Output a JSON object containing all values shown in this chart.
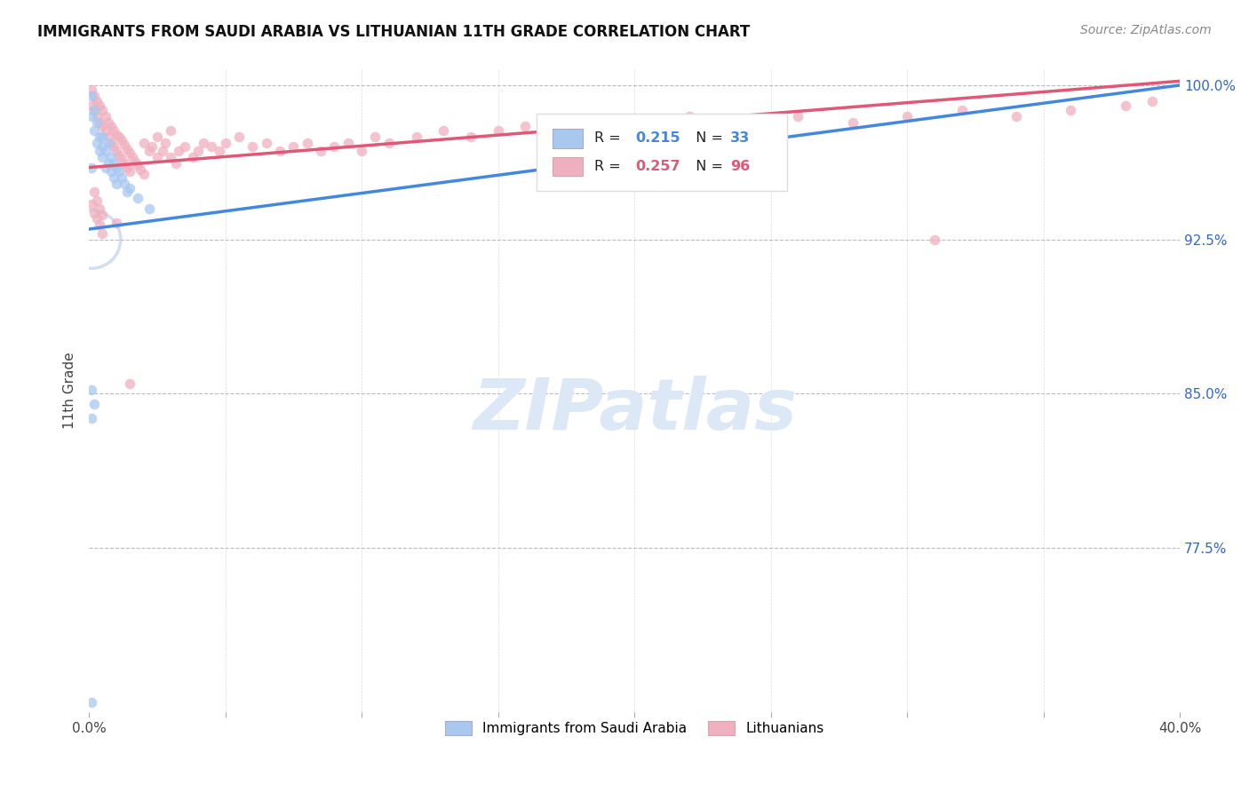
{
  "title": "IMMIGRANTS FROM SAUDI ARABIA VS LITHUANIAN 11TH GRADE CORRELATION CHART",
  "source": "Source: ZipAtlas.com",
  "ylabel": "11th Grade",
  "x_min": 0.0,
  "x_max": 0.4,
  "y_min": 0.695,
  "y_max": 1.008,
  "y_ticks": [
    0.775,
    0.85,
    0.925,
    1.0
  ],
  "y_tick_labels": [
    "77.5%",
    "85.0%",
    "92.5%",
    "100.0%"
  ],
  "blue_R": 0.215,
  "blue_N": 33,
  "pink_R": 0.257,
  "pink_N": 96,
  "blue_color": "#a8c8f0",
  "pink_color": "#f0b0c0",
  "blue_line_color": "#4488dd",
  "pink_line_color": "#e05878",
  "legend_blue_label": "Immigrants from Saudi Arabia",
  "legend_pink_label": "Lithuanians",
  "blue_trendline_x": [
    0.0,
    0.4
  ],
  "blue_trendline_y": [
    0.93,
    1.0
  ],
  "pink_trendline_x": [
    0.0,
    0.4
  ],
  "pink_trendline_y": [
    0.96,
    1.002
  ],
  "marker_size": 70,
  "watermark_text": "ZIPatlas",
  "background_color": "#ffffff",
  "grid_color": "#bbbbbb",
  "blue_scatter_x": [
    0.001,
    0.001,
    0.002,
    0.002,
    0.003,
    0.003,
    0.004,
    0.004,
    0.005,
    0.005,
    0.005,
    0.006,
    0.006,
    0.007,
    0.007,
    0.008,
    0.008,
    0.009,
    0.009,
    0.01,
    0.01,
    0.011,
    0.012,
    0.013,
    0.014,
    0.015,
    0.018,
    0.022,
    0.001,
    0.001,
    0.002,
    0.001,
    0.001
  ],
  "blue_scatter_y": [
    0.995,
    0.985,
    0.988,
    0.978,
    0.982,
    0.972,
    0.975,
    0.968,
    0.97,
    0.965,
    0.975,
    0.968,
    0.96,
    0.972,
    0.962,
    0.965,
    0.958,
    0.962,
    0.955,
    0.96,
    0.952,
    0.958,
    0.955,
    0.952,
    0.948,
    0.95,
    0.945,
    0.94,
    0.852,
    0.838,
    0.845,
    0.7,
    0.96
  ],
  "pink_scatter_x": [
    0.001,
    0.001,
    0.002,
    0.002,
    0.003,
    0.003,
    0.004,
    0.004,
    0.005,
    0.005,
    0.006,
    0.006,
    0.007,
    0.007,
    0.008,
    0.008,
    0.009,
    0.009,
    0.01,
    0.01,
    0.011,
    0.011,
    0.012,
    0.012,
    0.013,
    0.013,
    0.014,
    0.014,
    0.015,
    0.015,
    0.016,
    0.017,
    0.018,
    0.019,
    0.02,
    0.02,
    0.022,
    0.023,
    0.025,
    0.025,
    0.027,
    0.028,
    0.03,
    0.03,
    0.032,
    0.033,
    0.035,
    0.038,
    0.04,
    0.042,
    0.045,
    0.048,
    0.05,
    0.055,
    0.06,
    0.065,
    0.07,
    0.075,
    0.08,
    0.085,
    0.09,
    0.095,
    0.1,
    0.105,
    0.11,
    0.12,
    0.13,
    0.14,
    0.15,
    0.16,
    0.17,
    0.18,
    0.19,
    0.2,
    0.22,
    0.24,
    0.26,
    0.28,
    0.3,
    0.32,
    0.34,
    0.36,
    0.38,
    0.39,
    0.001,
    0.002,
    0.003,
    0.004,
    0.005,
    0.002,
    0.003,
    0.004,
    0.005,
    0.01,
    0.31,
    0.015
  ],
  "pink_scatter_y": [
    0.998,
    0.99,
    0.995,
    0.988,
    0.992,
    0.985,
    0.99,
    0.982,
    0.988,
    0.98,
    0.985,
    0.978,
    0.982,
    0.975,
    0.98,
    0.972,
    0.978,
    0.97,
    0.976,
    0.968,
    0.975,
    0.966,
    0.973,
    0.964,
    0.971,
    0.962,
    0.969,
    0.96,
    0.967,
    0.958,
    0.965,
    0.963,
    0.961,
    0.959,
    0.957,
    0.972,
    0.968,
    0.97,
    0.965,
    0.975,
    0.968,
    0.972,
    0.965,
    0.978,
    0.962,
    0.968,
    0.97,
    0.965,
    0.968,
    0.972,
    0.97,
    0.968,
    0.972,
    0.975,
    0.97,
    0.972,
    0.968,
    0.97,
    0.972,
    0.968,
    0.97,
    0.972,
    0.968,
    0.975,
    0.972,
    0.975,
    0.978,
    0.975,
    0.978,
    0.98,
    0.982,
    0.978,
    0.98,
    0.982,
    0.985,
    0.982,
    0.985,
    0.982,
    0.985,
    0.988,
    0.985,
    0.988,
    0.99,
    0.992,
    0.942,
    0.938,
    0.935,
    0.932,
    0.928,
    0.948,
    0.944,
    0.94,
    0.937,
    0.933,
    0.925,
    0.855
  ]
}
